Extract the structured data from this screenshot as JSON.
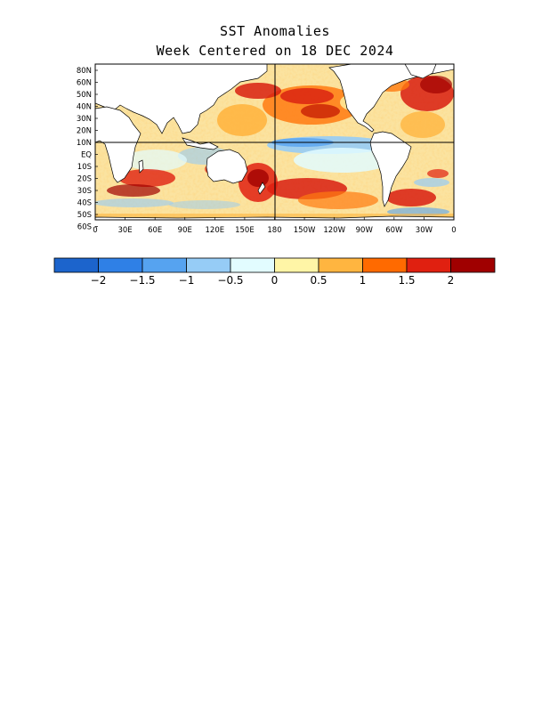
{
  "title": {
    "line1": "SST Anomalies",
    "line2": "Week Centered on 18 DEC 2024"
  },
  "map": {
    "lat_labels": [
      "80N",
      "60N",
      "50N",
      "40N",
      "30N",
      "20N",
      "10N",
      "EQ",
      "10S",
      "20S",
      "30S",
      "40S",
      "50S",
      "60S"
    ],
    "lon_labels": [
      "0",
      "30E",
      "60E",
      "90E",
      "120E",
      "150E",
      "180",
      "150W",
      "120W",
      "90W",
      "60W",
      "30W",
      "0"
    ],
    "land_color": "#ffffff",
    "ocean_base_color": "#fbe7a8"
  },
  "colorbar": {
    "colors": [
      "#1c64cc",
      "#2f80e6",
      "#56a3f0",
      "#96ccf6",
      "#e2fcff",
      "#fff5a6",
      "#ffb540",
      "#ff6a00",
      "#e02010",
      "#a00000"
    ],
    "labels": [
      "−2",
      "−1.5",
      "−1",
      "−0.5",
      "0",
      "0.5",
      "1",
      "1.5",
      "2"
    ]
  }
}
